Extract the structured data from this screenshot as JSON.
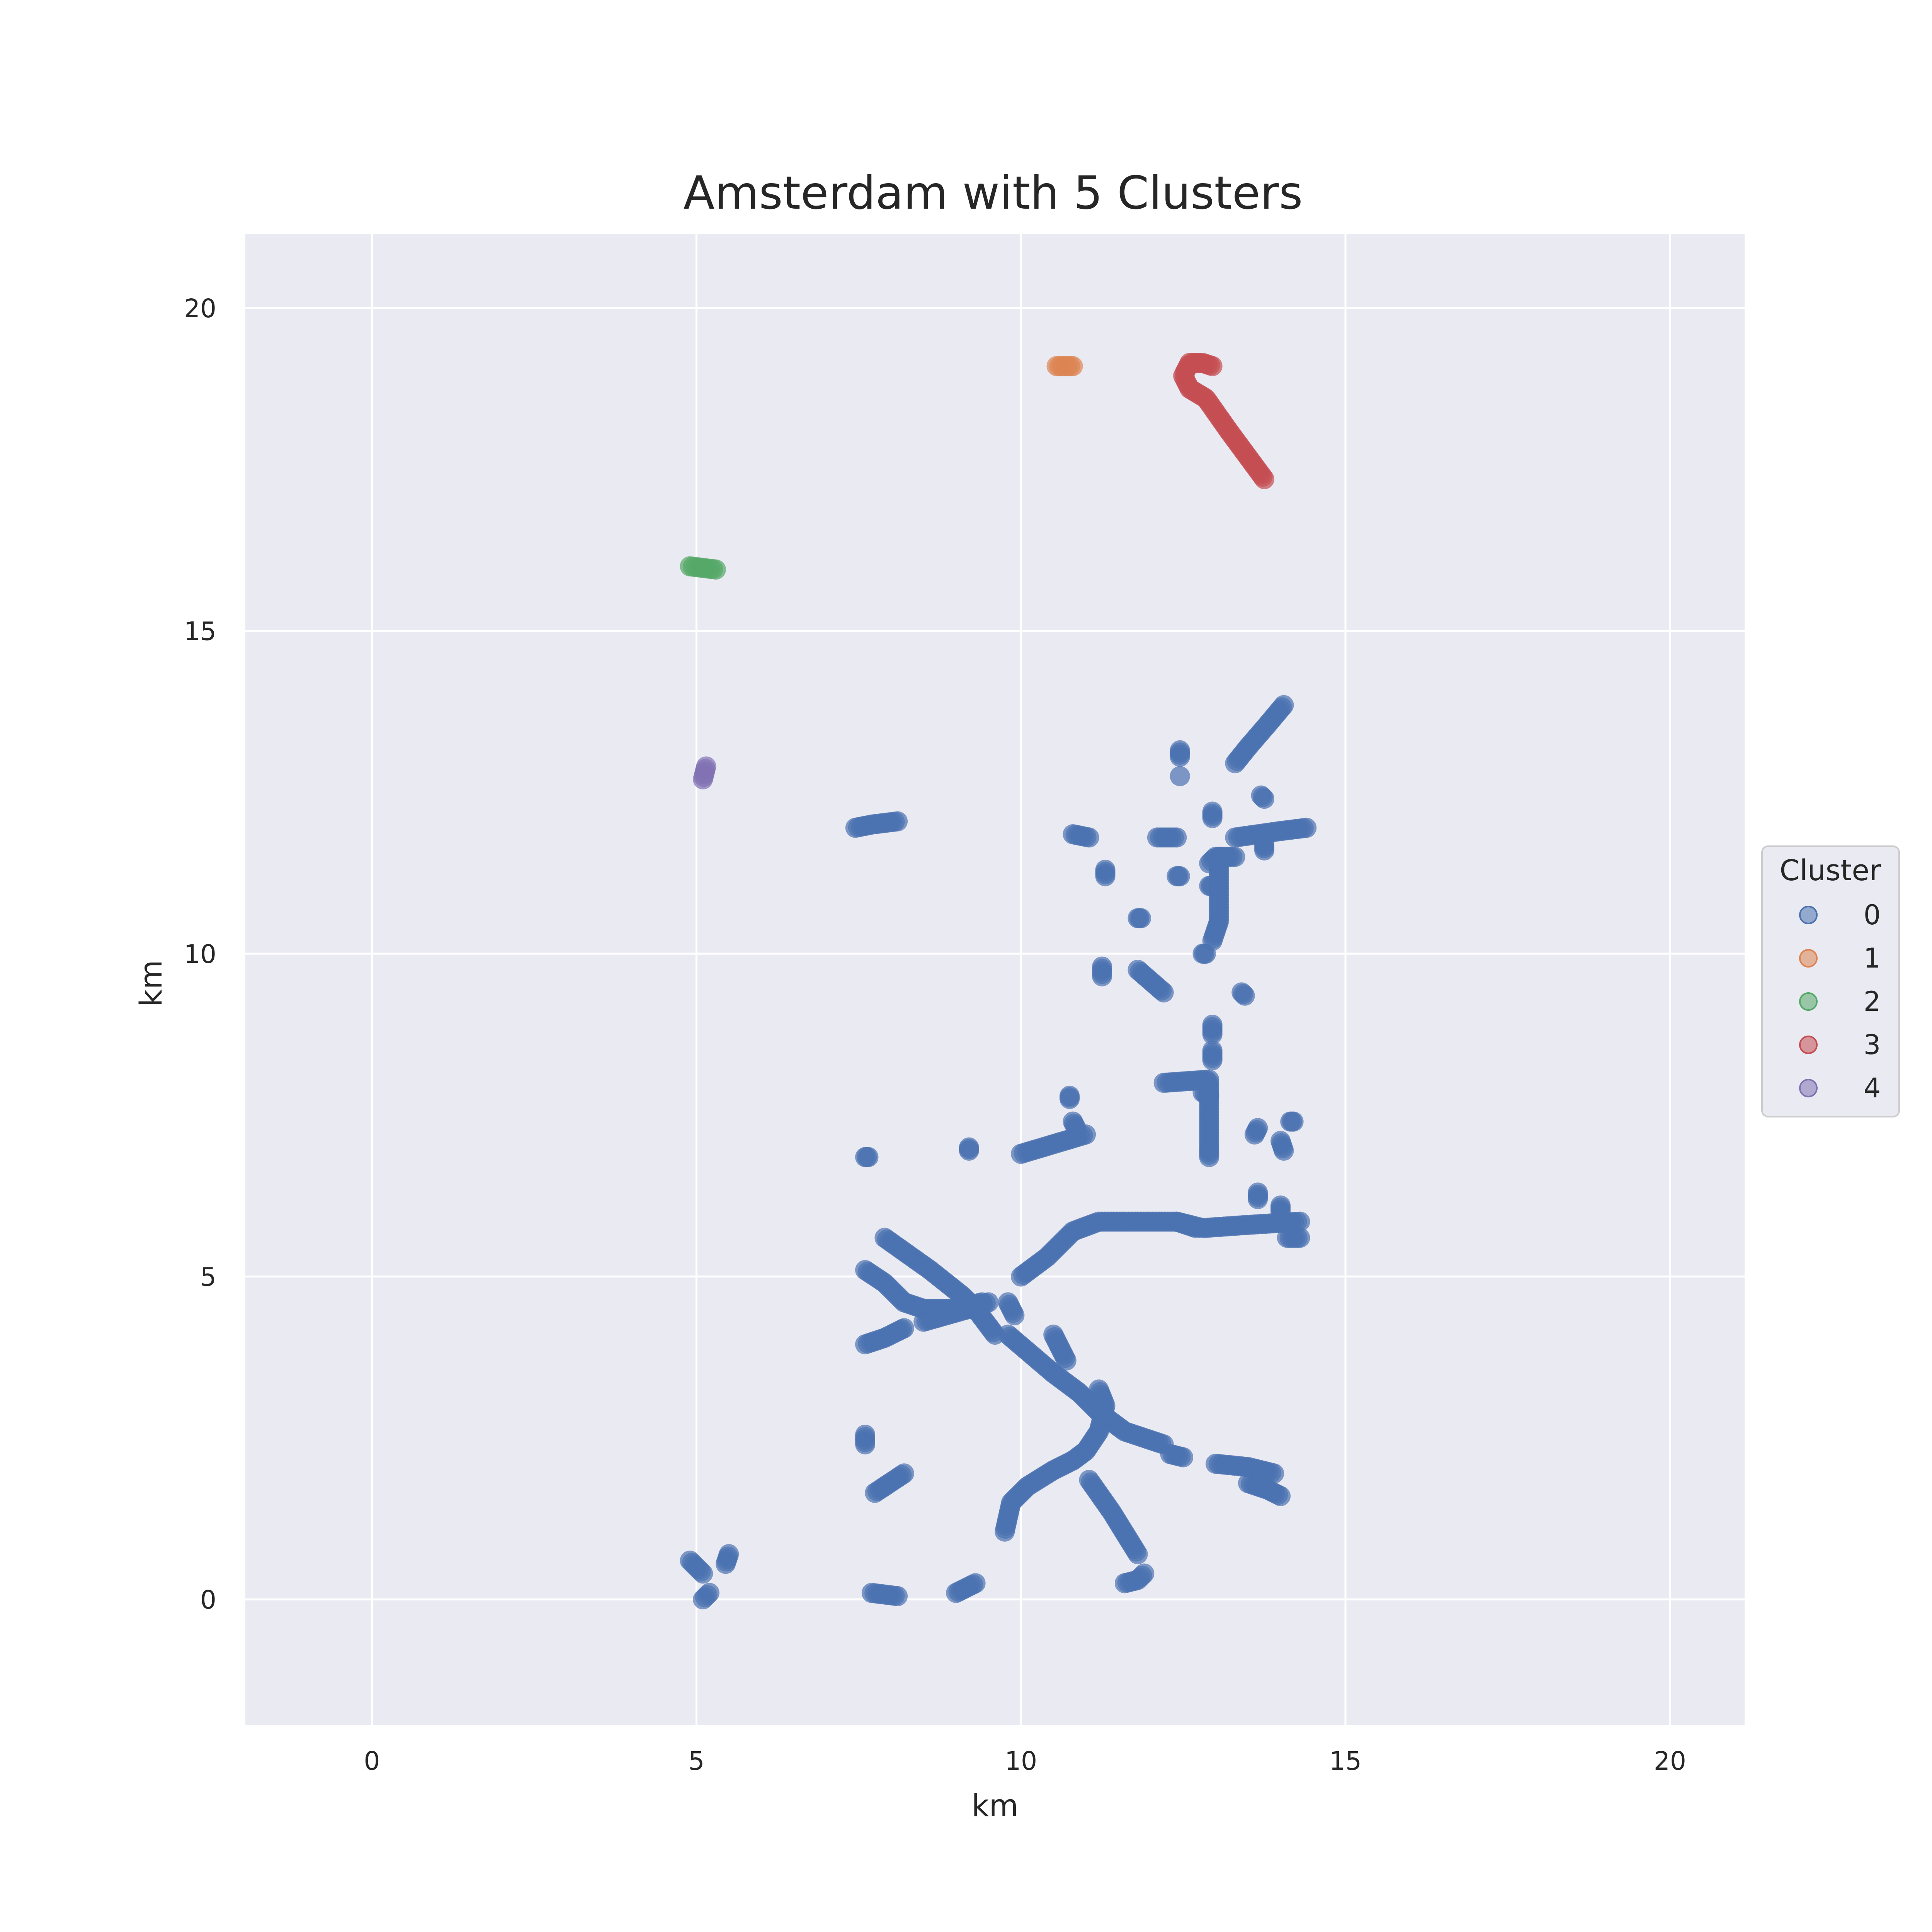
{
  "chart_data": {
    "type": "scatter",
    "title": "Amsterdam with 5 Clusters",
    "xlabel": "km",
    "ylabel": "km",
    "xlim": [
      -1.95,
      21.15
    ],
    "ylim": [
      -1.95,
      21.15
    ],
    "xticks": [
      0,
      5,
      10,
      15,
      20
    ],
    "yticks": [
      0,
      5,
      10,
      15,
      20
    ],
    "xtick_labels": [
      "0",
      "5",
      "10",
      "15",
      "20"
    ],
    "ytick_labels": [
      "0",
      "5",
      "10",
      "15",
      "20"
    ],
    "grid": true,
    "background": "#eaeaf2",
    "legend": {
      "title": "Cluster",
      "placement": "center-right outside",
      "entries": [
        "0",
        "1",
        "2",
        "3",
        "4"
      ]
    },
    "series": [
      {
        "name": "0",
        "color": "#4c72b0",
        "segments": [
          [
            [
              7.9,
              5.6
            ],
            [
              8.6,
              5.1
            ],
            [
              9.1,
              4.7
            ],
            [
              9.3,
              4.5
            ],
            [
              9.6,
              4.1
            ]
          ],
          [
            [
              7.6,
              5.1
            ],
            [
              7.9,
              4.9
            ],
            [
              8.2,
              4.6
            ],
            [
              8.5,
              4.5
            ],
            [
              9.0,
              4.5
            ],
            [
              9.4,
              4.6
            ]
          ],
          [
            [
              7.6,
              3.95
            ],
            [
              7.9,
              4.05
            ],
            [
              8.1,
              4.15
            ],
            [
              8.2,
              4.2
            ]
          ],
          [
            [
              8.5,
              4.3
            ],
            [
              9.2,
              4.5
            ],
            [
              9.5,
              4.6
            ]
          ],
          [
            [
              9.8,
              4.6
            ],
            [
              9.9,
              4.4
            ]
          ],
          [
            [
              9.8,
              4.1
            ],
            [
              10.5,
              3.5
            ],
            [
              10.9,
              3.2
            ],
            [
              11.2,
              2.9
            ],
            [
              11.6,
              2.6
            ],
            [
              12.2,
              2.4
            ]
          ],
          [
            [
              10.5,
              4.1
            ],
            [
              10.7,
              3.7
            ]
          ],
          [
            [
              10.0,
              5.0
            ],
            [
              10.4,
              5.3
            ],
            [
              10.8,
              5.7
            ],
            [
              11.2,
              5.85
            ],
            [
              12.4,
              5.85
            ],
            [
              12.8,
              5.75
            ],
            [
              13.5,
              5.8
            ],
            [
              14.3,
              5.85
            ]
          ],
          [
            [
              12.4,
              5.85
            ],
            [
              12.7,
              5.75
            ]
          ],
          [
            [
              14.1,
              5.6
            ],
            [
              14.3,
              5.6
            ]
          ],
          [
            [
              13.65,
              6.3
            ],
            [
              13.65,
              6.2
            ]
          ],
          [
            [
              14.0,
              6.1
            ],
            [
              14.0,
              6.0
            ]
          ],
          [
            [
              10.0,
              6.9
            ],
            [
              10.5,
              7.05
            ],
            [
              11.0,
              7.2
            ]
          ],
          [
            [
              10.75,
              7.8
            ],
            [
              10.75,
              7.75
            ]
          ],
          [
            [
              10.8,
              7.4
            ],
            [
              10.85,
              7.3
            ]
          ],
          [
            [
              7.6,
              6.85
            ],
            [
              7.65,
              6.85
            ]
          ],
          [
            [
              9.2,
              7.0
            ],
            [
              9.2,
              6.95
            ]
          ],
          [
            [
              12.2,
              8.0
            ],
            [
              12.9,
              8.05
            ],
            [
              12.9,
              7.5
            ],
            [
              12.9,
              7.0
            ],
            [
              12.9,
              6.85
            ]
          ],
          [
            [
              12.8,
              7.85
            ],
            [
              12.9,
              7.8
            ]
          ],
          [
            [
              13.6,
              7.2
            ],
            [
              13.65,
              7.3
            ]
          ],
          [
            [
              14.0,
              7.1
            ],
            [
              14.05,
              6.95
            ]
          ],
          [
            [
              14.15,
              7.4
            ],
            [
              14.2,
              7.4
            ]
          ],
          [
            [
              12.95,
              8.9
            ],
            [
              12.95,
              8.75
            ]
          ],
          [
            [
              12.95,
              8.5
            ],
            [
              12.95,
              8.35
            ]
          ],
          [
            [
              11.25,
              9.8
            ],
            [
              11.25,
              9.65
            ]
          ],
          [
            [
              11.8,
              9.75
            ],
            [
              12.2,
              9.4
            ]
          ],
          [
            [
              13.4,
              9.4
            ],
            [
              13.45,
              9.35
            ]
          ],
          [
            [
              11.8,
              10.55
            ],
            [
              11.85,
              10.55
            ]
          ],
          [
            [
              12.8,
              10.0
            ],
            [
              12.85,
              10.0
            ]
          ],
          [
            [
              12.95,
              10.2
            ],
            [
              13.05,
              10.5
            ],
            [
              13.05,
              11.5
            ]
          ],
          [
            [
              12.9,
              11.05
            ],
            [
              12.95,
              11.05
            ]
          ],
          [
            [
              12.9,
              11.4
            ],
            [
              13.0,
              11.5
            ],
            [
              13.3,
              11.5
            ]
          ],
          [
            [
              11.3,
              11.3
            ],
            [
              11.3,
              11.2
            ]
          ],
          [
            [
              12.4,
              11.2
            ],
            [
              12.45,
              11.2
            ]
          ],
          [
            [
              10.8,
              11.85
            ],
            [
              11.05,
              11.8
            ]
          ],
          [
            [
              12.1,
              11.8
            ],
            [
              12.4,
              11.8
            ]
          ],
          [
            [
              13.3,
              11.8
            ],
            [
              14.0,
              11.9
            ],
            [
              14.4,
              11.95
            ]
          ],
          [
            [
              13.75,
              11.7
            ],
            [
              13.75,
              11.6
            ]
          ],
          [
            [
              12.95,
              12.2
            ],
            [
              12.95,
              12.1
            ]
          ],
          [
            [
              12.45,
              13.15
            ],
            [
              12.45,
              13.05
            ]
          ],
          [
            [
              13.7,
              12.45
            ],
            [
              13.75,
              12.4
            ]
          ],
          [
            [
              13.3,
              12.95
            ],
            [
              13.5,
              13.2
            ],
            [
              13.8,
              13.55
            ],
            [
              14.05,
              13.85
            ]
          ],
          [
            [
              7.45,
              11.95
            ],
            [
              7.7,
              12.0
            ],
            [
              8.1,
              12.05
            ]
          ],
          [
            [
              7.6,
              2.55
            ],
            [
              7.6,
              2.4
            ]
          ],
          [
            [
              7.75,
              1.65
            ],
            [
              8.05,
              1.85
            ],
            [
              8.2,
              1.95
            ]
          ],
          [
            [
              9.75,
              1.05
            ],
            [
              9.85,
              1.5
            ],
            [
              10.1,
              1.75
            ],
            [
              10.5,
              2.0
            ],
            [
              10.8,
              2.15
            ],
            [
              11.0,
              2.3
            ],
            [
              11.2,
              2.6
            ],
            [
              11.3,
              3.0
            ],
            [
              11.2,
              3.25
            ]
          ],
          [
            [
              11.05,
              1.85
            ],
            [
              11.4,
              1.35
            ],
            [
              11.8,
              0.7
            ]
          ],
          [
            [
              11.6,
              0.25
            ],
            [
              11.8,
              0.3
            ],
            [
              11.9,
              0.4
            ]
          ],
          [
            [
              12.3,
              2.25
            ],
            [
              12.5,
              2.2
            ]
          ],
          [
            [
              13.0,
              2.1
            ],
            [
              13.5,
              2.05
            ],
            [
              13.9,
              1.95
            ]
          ],
          [
            [
              13.5,
              1.8
            ],
            [
              13.8,
              1.7
            ],
            [
              14.0,
              1.6
            ]
          ],
          [
            [
              7.7,
              0.1
            ],
            [
              8.1,
              0.05
            ]
          ],
          [
            [
              9.0,
              0.1
            ],
            [
              9.3,
              0.25
            ]
          ],
          [
            [
              4.9,
              0.6
            ],
            [
              5.1,
              0.4
            ]
          ],
          [
            [
              5.1,
              0.0
            ],
            [
              5.2,
              0.1
            ]
          ],
          [
            [
              5.45,
              0.55
            ],
            [
              5.5,
              0.7
            ]
          ]
        ],
        "points": [
          [
            12.45,
            12.75
          ]
        ]
      },
      {
        "name": "1",
        "color": "#dd8452",
        "segments": [
          [
            [
              10.55,
              19.1
            ],
            [
              10.8,
              19.1
            ]
          ]
        ],
        "points": []
      },
      {
        "name": "2",
        "color": "#55a868",
        "segments": [
          [
            [
              4.9,
              16.0
            ],
            [
              5.3,
              15.95
            ]
          ]
        ],
        "points": []
      },
      {
        "name": "3",
        "color": "#c44e52",
        "segments": [
          [
            [
              13.75,
              17.35
            ],
            [
              13.2,
              18.1
            ],
            [
              12.85,
              18.6
            ],
            [
              12.6,
              18.75
            ],
            [
              12.5,
              18.95
            ],
            [
              12.6,
              19.15
            ],
            [
              12.8,
              19.15
            ],
            [
              12.95,
              19.1
            ]
          ]
        ],
        "points": []
      },
      {
        "name": "4",
        "color": "#8172b3",
        "segments": [
          [
            [
              5.1,
              12.7
            ],
            [
              5.15,
              12.9
            ]
          ]
        ],
        "points": []
      }
    ]
  }
}
